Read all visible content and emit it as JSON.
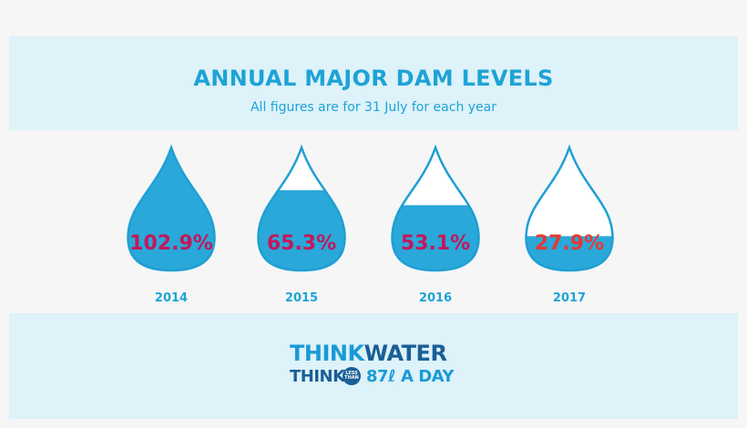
{
  "header": {
    "title": "ANNUAL MAJOR DAM LEVELS",
    "subtitle": "All figures are for 31 July for each year"
  },
  "chart_data": {
    "type": "bar",
    "categories": [
      "2014",
      "2015",
      "2016",
      "2017"
    ],
    "values": [
      102.9,
      65.3,
      53.1,
      27.9
    ],
    "value_labels": [
      "102.9%",
      "65.3%",
      "53.1%",
      "27.9%"
    ],
    "unit": "%",
    "ylim": [
      0,
      100
    ],
    "colors": {
      "water": "#29a8d9",
      "outline": "#1f9fd4",
      "label": "#c2185b",
      "label_low": "#e53935",
      "year": "#1ea3d6"
    },
    "low_threshold": 30
  },
  "logo": {
    "think1": "THINK",
    "water": "WATER",
    "think2": "THINK",
    "less": "LESS",
    "than": "THAN",
    "num": "87",
    "l": "ℓ",
    "aday": "A DAY"
  }
}
